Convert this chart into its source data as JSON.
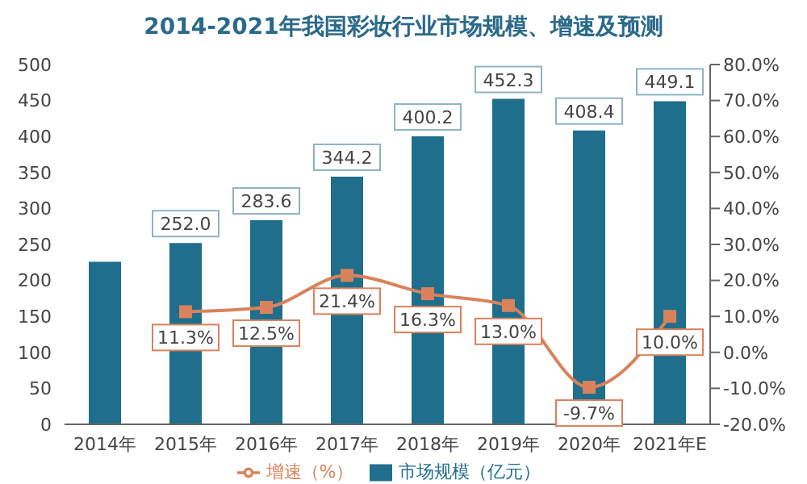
{
  "chart_data": {
    "type": "bar",
    "title": "2014-2021年我国彩妆行业市场规模、增速及预测",
    "categories": [
      "2014年",
      "2015年",
      "2016年",
      "2017年",
      "2018年",
      "2019年",
      "2020年",
      "2021年E"
    ],
    "series": [
      {
        "name": "市场规模（亿元）",
        "color": "#1f6e8c",
        "values": [
          226,
          252.0,
          283.6,
          344.2,
          400.2,
          452.3,
          408.4,
          449.1
        ],
        "value_labels": [
          null,
          "252.0",
          "283.6",
          "344.2",
          "400.2",
          "452.3",
          "408.4",
          "449.1"
        ]
      },
      {
        "name": "增速（%）",
        "type": "line",
        "axis": "y2",
        "color": "#d9825b",
        "marker": "square",
        "values": [
          null,
          11.3,
          12.5,
          21.4,
          16.3,
          13.0,
          -9.7,
          10.0
        ],
        "value_labels": [
          null,
          "11.3%",
          "12.5%",
          "21.4%",
          "16.3%",
          "13.0%",
          "-9.7%",
          "10.0%"
        ]
      }
    ],
    "ylim": [
      0,
      500
    ],
    "yticks": [
      0,
      50,
      100,
      150,
      200,
      250,
      300,
      350,
      400,
      450,
      500
    ],
    "y2lim": [
      -20,
      80
    ],
    "y2ticks": [
      {
        "value": -20,
        "label": "-20.0%"
      },
      {
        "value": -10,
        "label": "-10.0%"
      },
      {
        "value": 0,
        "label": "0.0%"
      },
      {
        "value": 10,
        "label": "10.0%"
      },
      {
        "value": 20,
        "label": "20.0%"
      },
      {
        "value": 30,
        "label": "30.0%"
      },
      {
        "value": 40,
        "label": "40.0%"
      },
      {
        "value": 50,
        "label": "50.0%"
      },
      {
        "value": 60,
        "label": "60.0%"
      },
      {
        "value": 70,
        "label": "70.0%"
      },
      {
        "value": 80,
        "label": "80.0%"
      }
    ],
    "grid": false,
    "legend": "bottom"
  }
}
